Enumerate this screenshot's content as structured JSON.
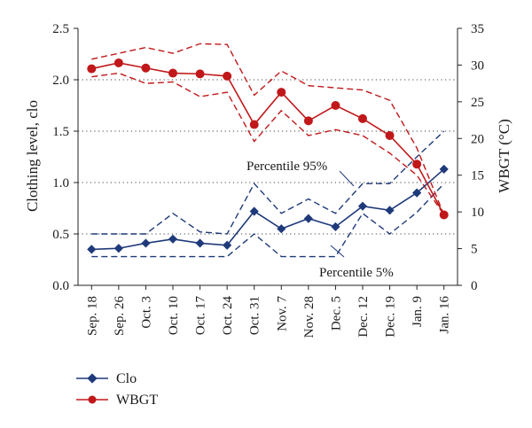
{
  "chart_data": {
    "type": "line",
    "categories": [
      "Sep. 18",
      "Sep. 26",
      "Oct. 3",
      "Oct. 10",
      "Oct. 17",
      "Oct. 24",
      "Oct. 31",
      "Nov. 7",
      "Nov. 28",
      "Dec. 5",
      "Dec. 12",
      "Dec. 19",
      "Jan. 9",
      "Jan. 16"
    ],
    "left_axis": {
      "label": "Clothing level, clo",
      "range": [
        0,
        2.5
      ],
      "ticks": [
        "0.0",
        "0.5",
        "1.0",
        "1.5",
        "2.0",
        "2.5"
      ],
      "tick_values": [
        0,
        0.5,
        1.0,
        1.5,
        2.0,
        2.5
      ]
    },
    "right_axis": {
      "label": "WBGT (°C)",
      "range": [
        0,
        35
      ],
      "ticks": [
        "0",
        "5",
        "10",
        "15",
        "20",
        "25",
        "30",
        "35"
      ],
      "tick_values": [
        0,
        5,
        10,
        15,
        20,
        25,
        30,
        35
      ]
    },
    "grid": {
      "horizontal_dotted_at_left_values": [
        0.5,
        1.0,
        1.5,
        2.0
      ]
    },
    "series": [
      {
        "name": "Clo",
        "axis": "left",
        "color": "#1f3a7a",
        "marker": "diamond",
        "values": [
          0.35,
          0.36,
          0.41,
          0.45,
          0.41,
          0.39,
          0.72,
          0.55,
          0.65,
          0.57,
          0.77,
          0.73,
          0.9,
          1.13
        ],
        "p95": [
          0.5,
          0.5,
          0.5,
          0.7,
          0.52,
          0.5,
          0.99,
          0.7,
          0.84,
          0.7,
          0.99,
          0.99,
          1.25,
          1.5
        ],
        "p5": [
          0.28,
          0.28,
          0.28,
          0.28,
          0.28,
          0.28,
          0.5,
          0.28,
          0.28,
          0.28,
          0.7,
          0.5,
          0.71,
          0.99
        ]
      },
      {
        "name": "WBGT",
        "axis": "right",
        "color": "#c0181a",
        "marker": "circle",
        "values": [
          29.5,
          30.3,
          29.6,
          28.9,
          28.8,
          28.5,
          21.9,
          26.3,
          22.4,
          24.5,
          22.7,
          20.4,
          16.5,
          9.6
        ],
        "p95": [
          30.8,
          31.6,
          32.4,
          31.6,
          32.9,
          32.8,
          25.9,
          29.2,
          27.2,
          26.9,
          26.6,
          25.2,
          18.7,
          9.6
        ],
        "p5": [
          28.4,
          28.9,
          27.5,
          27.7,
          25.7,
          26.3,
          19.6,
          23.8,
          20.4,
          21.2,
          20.4,
          18.0,
          15.0,
          9.6
        ]
      }
    ],
    "annotations": [
      {
        "text": "Percentile 95%"
      },
      {
        "text": "Percentile 5%"
      }
    ],
    "legend": {
      "placement": "bottom-left",
      "entries": [
        {
          "name": "Clo",
          "color": "#1f3a7a",
          "marker": "diamond"
        },
        {
          "name": "WBGT",
          "color": "#c0181a",
          "marker": "circle"
        }
      ]
    }
  }
}
